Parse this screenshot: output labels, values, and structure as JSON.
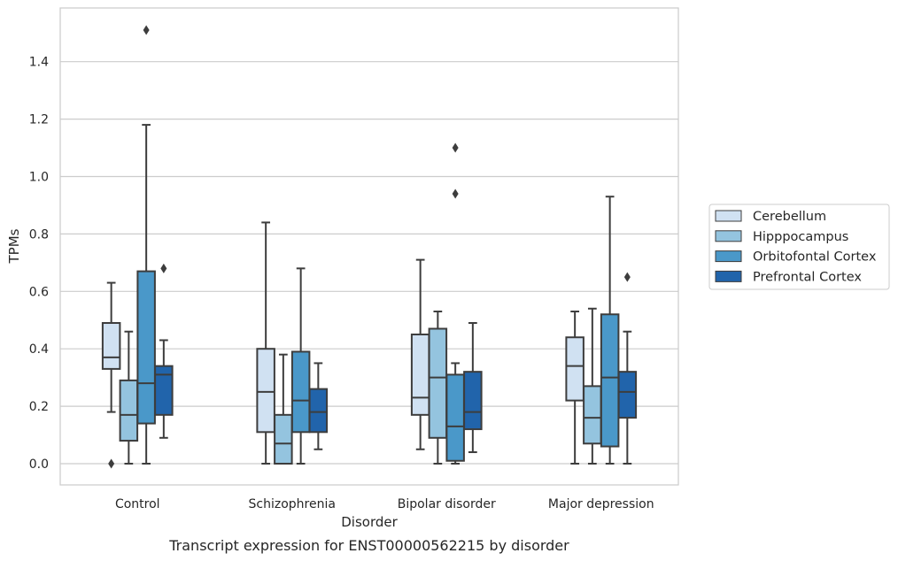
{
  "chart_data": {
    "type": "box",
    "title": "",
    "xlabel": "Disorder",
    "ylabel": "TPMs",
    "caption": "Transcript expression for ENST00000562215 by disorder",
    "categories": [
      "Control",
      "Schizophrenia",
      "Bipolar disorder",
      "Major depression"
    ],
    "ylim": [
      -0.07,
      1.59
    ],
    "yticks": [
      0.0,
      0.2,
      0.4,
      0.6,
      0.8,
      1.0,
      1.2,
      1.4
    ],
    "ytick_labels": [
      "0.0",
      "0.2",
      "0.4",
      "0.6",
      "0.8",
      "1.0",
      "1.2",
      "1.4"
    ],
    "grid": true,
    "legend_position": "right",
    "series": [
      {
        "name": "Cerebellum",
        "color": "#d0e1f2",
        "boxes": [
          {
            "whisker_low": 0.18,
            "q1": 0.33,
            "median": 0.37,
            "q3": 0.49,
            "whisker_high": 0.63,
            "outliers": [
              0.0
            ]
          },
          {
            "whisker_low": 0.0,
            "q1": 0.11,
            "median": 0.25,
            "q3": 0.4,
            "whisker_high": 0.84,
            "outliers": []
          },
          {
            "whisker_low": 0.05,
            "q1": 0.17,
            "median": 0.23,
            "q3": 0.45,
            "whisker_high": 0.71,
            "outliers": []
          },
          {
            "whisker_low": 0.0,
            "q1": 0.22,
            "median": 0.34,
            "q3": 0.44,
            "whisker_high": 0.53,
            "outliers": []
          }
        ]
      },
      {
        "name": "Hipppocampus",
        "color": "#94c4df",
        "boxes": [
          {
            "whisker_low": 0.0,
            "q1": 0.08,
            "median": 0.17,
            "q3": 0.29,
            "whisker_high": 0.46,
            "outliers": []
          },
          {
            "whisker_low": 0.0,
            "q1": 0.0,
            "median": 0.07,
            "q3": 0.17,
            "whisker_high": 0.38,
            "outliers": []
          },
          {
            "whisker_low": 0.0,
            "q1": 0.09,
            "median": 0.3,
            "q3": 0.47,
            "whisker_high": 0.53,
            "outliers": []
          },
          {
            "whisker_low": 0.0,
            "q1": 0.07,
            "median": 0.16,
            "q3": 0.27,
            "whisker_high": 0.54,
            "outliers": []
          }
        ]
      },
      {
        "name": "Orbitofontal Cortex",
        "color": "#4a98c9",
        "boxes": [
          {
            "whisker_low": 0.0,
            "q1": 0.14,
            "median": 0.28,
            "q3": 0.67,
            "whisker_high": 1.18,
            "outliers": [
              1.51
            ]
          },
          {
            "whisker_low": 0.0,
            "q1": 0.11,
            "median": 0.22,
            "q3": 0.39,
            "whisker_high": 0.68,
            "outliers": []
          },
          {
            "whisker_low": 0.0,
            "q1": 0.01,
            "median": 0.13,
            "q3": 0.31,
            "whisker_high": 0.35,
            "outliers": [
              0.94,
              1.1
            ]
          },
          {
            "whisker_low": 0.0,
            "q1": 0.06,
            "median": 0.3,
            "q3": 0.52,
            "whisker_high": 0.93,
            "outliers": []
          }
        ]
      },
      {
        "name": "Prefrontal Cortex",
        "color": "#2164ab",
        "boxes": [
          {
            "whisker_low": 0.09,
            "q1": 0.17,
            "median": 0.31,
            "q3": 0.34,
            "whisker_high": 0.43,
            "outliers": [
              0.68
            ]
          },
          {
            "whisker_low": 0.05,
            "q1": 0.11,
            "median": 0.18,
            "q3": 0.26,
            "whisker_high": 0.35,
            "outliers": []
          },
          {
            "whisker_low": 0.04,
            "q1": 0.12,
            "median": 0.18,
            "q3": 0.32,
            "whisker_high": 0.49,
            "outliers": []
          },
          {
            "whisker_low": 0.0,
            "q1": 0.16,
            "median": 0.25,
            "q3": 0.32,
            "whisker_high": 0.46,
            "outliers": [
              0.65
            ]
          }
        ]
      }
    ]
  },
  "colors": {
    "grid": "#cccccc",
    "frame": "#cccccc",
    "box_edge": "#3d3d3d",
    "text": "#262626"
  }
}
